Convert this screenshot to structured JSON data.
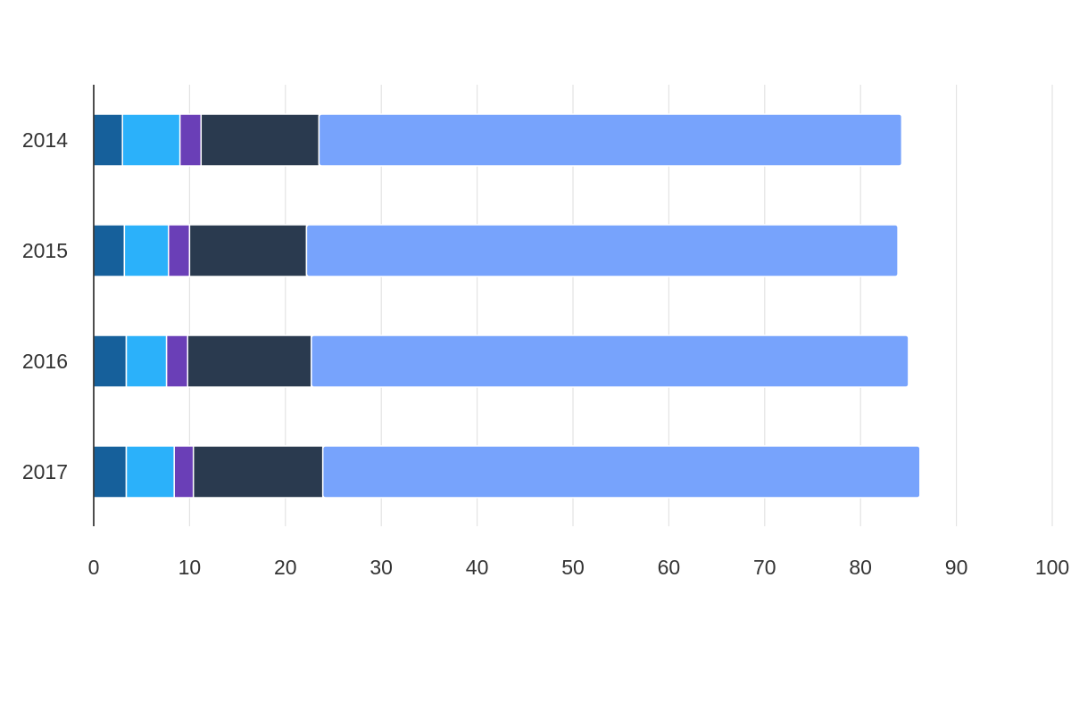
{
  "chart_data": {
    "type": "bar",
    "orientation": "horizontal",
    "stacked": true,
    "title": "",
    "xlabel": "",
    "ylabel": "",
    "xlim": [
      0,
      100
    ],
    "grid": true,
    "legend": "none",
    "x_ticks": [
      "0",
      "10",
      "20",
      "30",
      "40",
      "50",
      "60",
      "70",
      "80",
      "90",
      "100"
    ],
    "categories": [
      "2014",
      "2015",
      "2016",
      "2017"
    ],
    "series": [
      {
        "color": "#16609b",
        "values": [
          3.0,
          3.2,
          3.4,
          3.4
        ]
      },
      {
        "color": "#2bb1fa",
        "values": [
          6.0,
          4.6,
          4.2,
          5.0
        ]
      },
      {
        "color": "#6a3fb7",
        "values": [
          2.2,
          2.2,
          2.2,
          2.0
        ]
      },
      {
        "color": "#2a3a4f",
        "values": [
          12.3,
          12.2,
          12.9,
          13.5
        ]
      },
      {
        "color": "#77a3fc",
        "values": [
          60.8,
          61.7,
          62.3,
          62.3
        ]
      }
    ]
  }
}
